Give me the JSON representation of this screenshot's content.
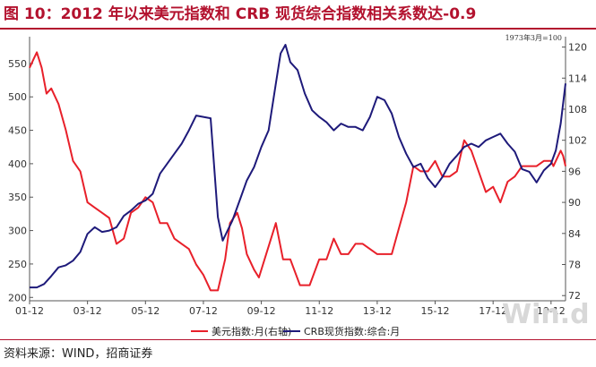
{
  "title": "图 10：2012 年以来美元指数和 CRB 现货综合指数相关系数达-0.9",
  "source": "资料来源：WIND，招商证券",
  "watermark": "Win.d",
  "colors": {
    "accent": "#b3122e",
    "usd": "#e8202a",
    "crb": "#1e1a7a",
    "axis": "#555555"
  },
  "chart_data": {
    "type": "line",
    "note": "1973年3月=100",
    "x_ticks": [
      "01-12",
      "03-12",
      "05-12",
      "07-12",
      "09-12",
      "11-12",
      "13-12",
      "15-12",
      "17-12",
      "19-12"
    ],
    "x_range": [
      "2001-12",
      "2020-06"
    ],
    "left_axis": {
      "ticks": [
        200,
        250,
        300,
        350,
        400,
        450,
        500,
        550
      ],
      "ylim": [
        195,
        590
      ]
    },
    "right_axis": {
      "ticks": [
        72,
        78,
        84,
        90,
        96,
        102,
        108,
        114,
        120
      ],
      "ylim": [
        71,
        122
      ]
    },
    "legend": [
      "美元指数:月(右轴)",
      "CRB现货指数:综合:月"
    ],
    "series": [
      {
        "name": "美元指数:月(右轴)",
        "axis": "right",
        "points": [
          [
            "2001-12",
            116
          ],
          [
            "2002-02",
            118
          ],
          [
            "2002-03",
            119
          ],
          [
            "2002-05",
            116
          ],
          [
            "2002-07",
            111
          ],
          [
            "2002-09",
            112
          ],
          [
            "2002-12",
            109
          ],
          [
            "2003-03",
            104
          ],
          [
            "2003-06",
            98
          ],
          [
            "2003-09",
            96
          ],
          [
            "2003-12",
            90
          ],
          [
            "2004-03",
            89
          ],
          [
            "2004-06",
            88
          ],
          [
            "2004-09",
            87
          ],
          [
            "2004-12",
            82
          ],
          [
            "2005-03",
            83
          ],
          [
            "2005-06",
            88
          ],
          [
            "2005-09",
            89
          ],
          [
            "2005-12",
            91
          ],
          [
            "2006-03",
            90
          ],
          [
            "2006-06",
            86
          ],
          [
            "2006-09",
            86
          ],
          [
            "2006-12",
            83
          ],
          [
            "2007-03",
            82
          ],
          [
            "2007-06",
            81
          ],
          [
            "2007-09",
            78
          ],
          [
            "2007-12",
            76
          ],
          [
            "2008-03",
            73
          ],
          [
            "2008-06",
            73
          ],
          [
            "2008-09",
            79
          ],
          [
            "2008-11",
            86
          ],
          [
            "2009-02",
            88
          ],
          [
            "2009-04",
            85
          ],
          [
            "2009-06",
            80
          ],
          [
            "2009-09",
            77
          ],
          [
            "2009-11",
            75.5
          ],
          [
            "2010-02",
            80
          ],
          [
            "2010-06",
            86
          ],
          [
            "2010-09",
            79
          ],
          [
            "2010-12",
            79
          ],
          [
            "2011-04",
            74
          ],
          [
            "2011-08",
            74
          ],
          [
            "2011-12",
            79
          ],
          [
            "2012-03",
            79
          ],
          [
            "2012-06",
            83
          ],
          [
            "2012-09",
            80
          ],
          [
            "2012-12",
            80
          ],
          [
            "2013-03",
            82
          ],
          [
            "2013-06",
            82
          ],
          [
            "2013-09",
            81
          ],
          [
            "2013-12",
            80
          ],
          [
            "2014-03",
            80
          ],
          [
            "2014-06",
            80
          ],
          [
            "2014-09",
            85
          ],
          [
            "2014-12",
            90
          ],
          [
            "2015-03",
            97
          ],
          [
            "2015-06",
            96
          ],
          [
            "2015-09",
            96
          ],
          [
            "2015-12",
            98
          ],
          [
            "2016-03",
            95
          ],
          [
            "2016-06",
            95
          ],
          [
            "2016-09",
            96
          ],
          [
            "2016-12",
            102
          ],
          [
            "2017-03",
            100
          ],
          [
            "2017-06",
            96
          ],
          [
            "2017-09",
            92
          ],
          [
            "2017-12",
            93
          ],
          [
            "2018-03",
            90
          ],
          [
            "2018-06",
            94
          ],
          [
            "2018-09",
            95
          ],
          [
            "2018-12",
            97
          ],
          [
            "2019-03",
            97
          ],
          [
            "2019-06",
            97
          ],
          [
            "2019-09",
            98
          ],
          [
            "2019-12",
            98
          ],
          [
            "2020-01",
            97
          ],
          [
            "2020-03",
            99
          ],
          [
            "2020-04",
            100
          ],
          [
            "2020-05",
            99
          ],
          [
            "2020-06",
            97
          ]
        ]
      },
      {
        "name": "CRB现货指数:综合:月",
        "axis": "left",
        "points": [
          [
            "2001-12",
            215
          ],
          [
            "2002-03",
            215
          ],
          [
            "2002-06",
            220
          ],
          [
            "2002-09",
            232
          ],
          [
            "2002-12",
            245
          ],
          [
            "2003-03",
            248
          ],
          [
            "2003-06",
            255
          ],
          [
            "2003-09",
            268
          ],
          [
            "2003-12",
            295
          ],
          [
            "2004-03",
            305
          ],
          [
            "2004-06",
            298
          ],
          [
            "2004-09",
            300
          ],
          [
            "2004-12",
            305
          ],
          [
            "2005-03",
            322
          ],
          [
            "2005-06",
            330
          ],
          [
            "2005-09",
            340
          ],
          [
            "2005-12",
            345
          ],
          [
            "2006-03",
            355
          ],
          [
            "2006-06",
            385
          ],
          [
            "2006-09",
            400
          ],
          [
            "2006-12",
            415
          ],
          [
            "2007-03",
            430
          ],
          [
            "2007-06",
            450
          ],
          [
            "2007-09",
            472
          ],
          [
            "2007-12",
            470
          ],
          [
            "2008-03",
            468
          ],
          [
            "2008-06",
            320
          ],
          [
            "2008-08",
            285
          ],
          [
            "2008-10",
            300
          ],
          [
            "2008-12",
            315
          ],
          [
            "2009-03",
            345
          ],
          [
            "2009-06",
            375
          ],
          [
            "2009-09",
            395
          ],
          [
            "2009-12",
            425
          ],
          [
            "2010-03",
            450
          ],
          [
            "2010-06",
            520
          ],
          [
            "2010-08",
            565
          ],
          [
            "2010-10",
            578
          ],
          [
            "2010-12",
            552
          ],
          [
            "2011-03",
            540
          ],
          [
            "2011-06",
            505
          ],
          [
            "2011-09",
            480
          ],
          [
            "2011-12",
            470
          ],
          [
            "2012-03",
            462
          ],
          [
            "2012-06",
            450
          ],
          [
            "2012-09",
            460
          ],
          [
            "2012-12",
            455
          ],
          [
            "2013-03",
            455
          ],
          [
            "2013-06",
            450
          ],
          [
            "2013-09",
            470
          ],
          [
            "2013-12",
            500
          ],
          [
            "2014-03",
            495
          ],
          [
            "2014-06",
            475
          ],
          [
            "2014-09",
            440
          ],
          [
            "2014-12",
            415
          ],
          [
            "2015-03",
            395
          ],
          [
            "2015-06",
            400
          ],
          [
            "2015-09",
            378
          ],
          [
            "2015-12",
            365
          ],
          [
            "2016-03",
            380
          ],
          [
            "2016-06",
            400
          ],
          [
            "2016-09",
            412
          ],
          [
            "2016-12",
            425
          ],
          [
            "2017-03",
            430
          ],
          [
            "2017-06",
            425
          ],
          [
            "2017-09",
            435
          ],
          [
            "2017-12",
            440
          ],
          [
            "2018-03",
            445
          ],
          [
            "2018-06",
            430
          ],
          [
            "2018-09",
            418
          ],
          [
            "2018-12",
            392
          ],
          [
            "2019-03",
            388
          ],
          [
            "2019-06",
            372
          ],
          [
            "2019-09",
            390
          ],
          [
            "2019-12",
            400
          ],
          [
            "2020-02",
            420
          ],
          [
            "2020-04",
            460
          ],
          [
            "2020-06",
            520
          ]
        ]
      }
    ]
  }
}
